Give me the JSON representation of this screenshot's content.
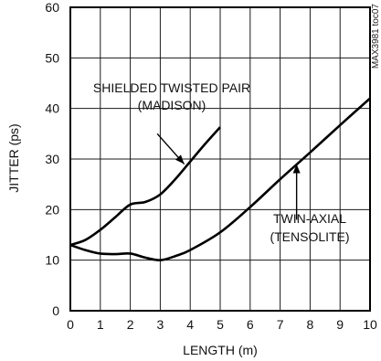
{
  "chart_data": {
    "type": "line",
    "xlabel": "LENGTH (m)",
    "ylabel": "JITTER (ps)",
    "xlim": [
      0,
      10
    ],
    "ylim": [
      0,
      60
    ],
    "x_ticks": [
      "0",
      "1",
      "2",
      "3",
      "4",
      "5",
      "6",
      "7",
      "8",
      "9",
      "10"
    ],
    "y_ticks": [
      "0",
      "10",
      "20",
      "30",
      "40",
      "50",
      "60"
    ],
    "grid": true,
    "chart_id": "MAX3981 toc07",
    "series": [
      {
        "name": "SHIELDED TWISTED PAIR (MADISON)",
        "x": [
          0,
          0.5,
          1,
          1.5,
          2,
          2.5,
          3,
          3.5,
          4,
          4.5,
          5
        ],
        "y": [
          13,
          14,
          16,
          18.5,
          21,
          21.5,
          23,
          26,
          29.5,
          33,
          36.3
        ]
      },
      {
        "name": "TWIN-AXIAL (TENSOLITE)",
        "x": [
          0,
          0.5,
          1,
          1.5,
          2,
          2.5,
          3,
          3.5,
          4,
          5,
          6,
          7,
          8,
          9,
          10
        ],
        "y": [
          13,
          12,
          11.3,
          11.2,
          11.3,
          10.5,
          10,
          10.8,
          12,
          15.5,
          20.5,
          26,
          31.3,
          36.7,
          42
        ]
      }
    ],
    "annotations": [
      {
        "lines": [
          "SHIELDED TWISTED PAIR",
          "(MADISON)"
        ],
        "arrow_to_x": 3.8,
        "arrow_to_y": 29
      },
      {
        "lines": [
          "TWIN-AXIAL",
          "(TENSOLITE)"
        ],
        "arrow_to_x": 7.55,
        "arrow_to_y": 29
      }
    ]
  }
}
